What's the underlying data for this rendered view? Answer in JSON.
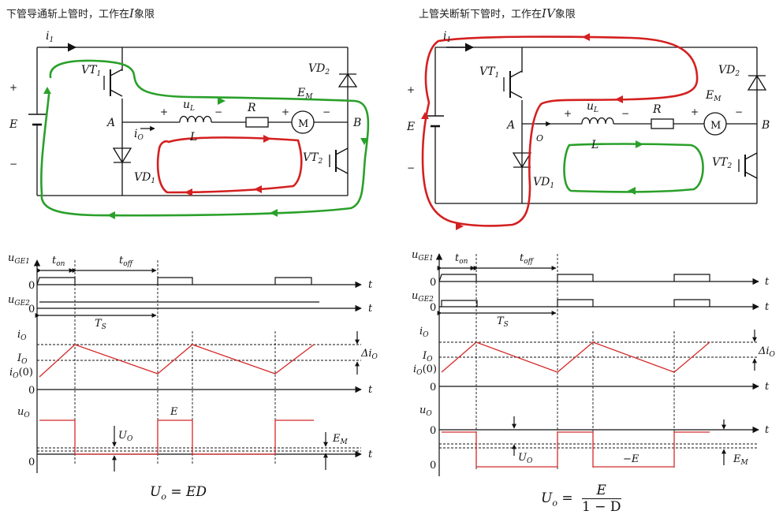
{
  "captions": {
    "left": "下管导通斩上管时，工作在",
    "left_quadrant": "I",
    "left_suffix": "象限",
    "right": "上管关断斩下管时，工作在",
    "right_quadrant": "IV",
    "right_suffix": "象限"
  },
  "circuit_labels": {
    "i1": "i",
    "i1_sub": "1",
    "vt1": "VT",
    "vt1_sub": "1",
    "vt2": "VT",
    "vt2_sub": "2",
    "vd1": "VD",
    "vd1_sub": "1",
    "vd2": "VD",
    "vd2_sub": "2",
    "E": "E",
    "plus": "+",
    "minus": "−",
    "A": "A",
    "B": "B",
    "io": "i",
    "io_sub": "O",
    "uL": "u",
    "uL_sub": "L",
    "L": "L",
    "R": "R",
    "EM": "E",
    "EM_sub": "M",
    "motor": "M"
  },
  "waveform_labels": {
    "uGE1": "u",
    "uGE1_sub": "GE1",
    "uGE2": "u",
    "uGE2_sub": "GE2",
    "zero": "0",
    "t": "t",
    "ton": "t",
    "ton_sub": "on",
    "toff": "t",
    "toff_sub": "off",
    "Ts": "T",
    "Ts_sub": "S",
    "io": "i",
    "io_sub": "O",
    "Io": "I",
    "Io_sub": "O",
    "io0": "i",
    "io0_sub": "O",
    "io0_tail": "(0)",
    "delta_io": "Δi",
    "delta_io_sub": "O",
    "uo": "u",
    "uo_sub": "O",
    "Uo": "U",
    "Uo_sub": "O",
    "E_level": "E",
    "neg_E_level": "−E",
    "EM": "E",
    "EM_sub": "M"
  },
  "formulas": {
    "left_lhs": "U",
    "left_lhs_sub": "o",
    "left_rhs": " = ED",
    "right_lhs": "U",
    "right_lhs_sub": "o",
    "right_eq": " = ",
    "right_num": "E",
    "right_den": "1 − D"
  },
  "colors": {
    "current_path_green": "#2aa02a",
    "current_path_red": "#d42020",
    "waveform_red": "#d42a2a",
    "circuit_black": "#111111"
  }
}
